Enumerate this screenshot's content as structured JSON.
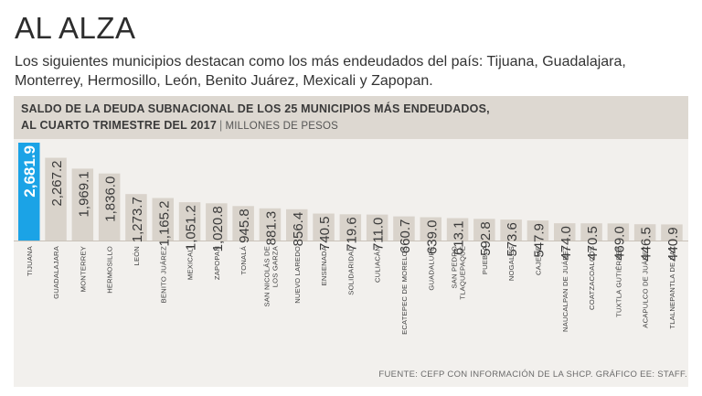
{
  "headline": "AL ALZA",
  "subtitle": "Los siguientes municipios destacan como los más endeudados del país: Tijuana, Guadalajara, Monterrey, Hermosillo, León, Benito Juárez, Mexicali y Zapopan.",
  "colors": {
    "highlight": "#1ba3e6",
    "bar": "#d9d3cb",
    "panel": "#f2f0ed",
    "header": "#ddd8d1",
    "highlight_label": "#ffffff"
  },
  "chart_data": {
    "type": "bar",
    "title_line1": "SALDO DE LA DEUDA SUBNACIONAL DE LOS 25 MUNICIPIOS MÁS ENDEUDADOS,",
    "title_line2": "AL CUARTO TRIMESTRE DEL 2017",
    "separator": "|",
    "unit": "MILLONES DE PESOS",
    "categories": [
      "TIJUANA",
      "GUADALAJARA",
      "MONTERREY",
      "HERMOSILLO",
      "LEÓN",
      "BENITO JUÁREZ",
      "MEXICALI",
      "ZAPOPAN",
      "TONALÁ",
      "SAN NICOLÁS DE LOS GARZA",
      "NUEVO LAREDO",
      "ENSENADA",
      "SOLIDARIDAD",
      "CULIACÁN",
      "ECATEPEC DE MORELOS",
      "GUADALUPE",
      "SAN PEDRO TLAQUEPAQUE",
      "PUEBLA",
      "NOGALES",
      "CAJEME",
      "NAUCALPAN DE JUÁREZ",
      "COATZACOALCOS",
      "TUXTLA GUTIÉRREZ",
      "ACAPULCO DE JUÁREZ",
      "TLALNEPANTLA DE BAZ"
    ],
    "values": [
      2681.9,
      2267.2,
      1969.1,
      1836.0,
      1273.7,
      1165.2,
      1051.2,
      1020.8,
      945.8,
      881.3,
      856.4,
      740.5,
      719.6,
      711.0,
      660.7,
      639.0,
      613.1,
      592.8,
      573.6,
      547.9,
      474.0,
      470.5,
      469.0,
      446.5,
      440.9
    ],
    "value_labels": [
      "2,681.9",
      "2,267.2",
      "1,969.1",
      "1,836.0",
      "1,273.7",
      "1,165.2",
      "1,051.2",
      "1,020.8",
      "945.8",
      "881.3",
      "856.4",
      "740.5",
      "719.6",
      "711.0",
      "660.7",
      "639.0",
      "613.1",
      "592.8",
      "573.6",
      "547.9",
      "474.0",
      "470.5",
      "469.0",
      "446.5",
      "440.9"
    ],
    "highlight": "TIJUANA",
    "ylim": [
      0,
      2681.9
    ]
  },
  "source": "FUENTE: CEFP CON INFORMACIÓN DE LA SHCP.  GRÁFICO EE: STAFF."
}
